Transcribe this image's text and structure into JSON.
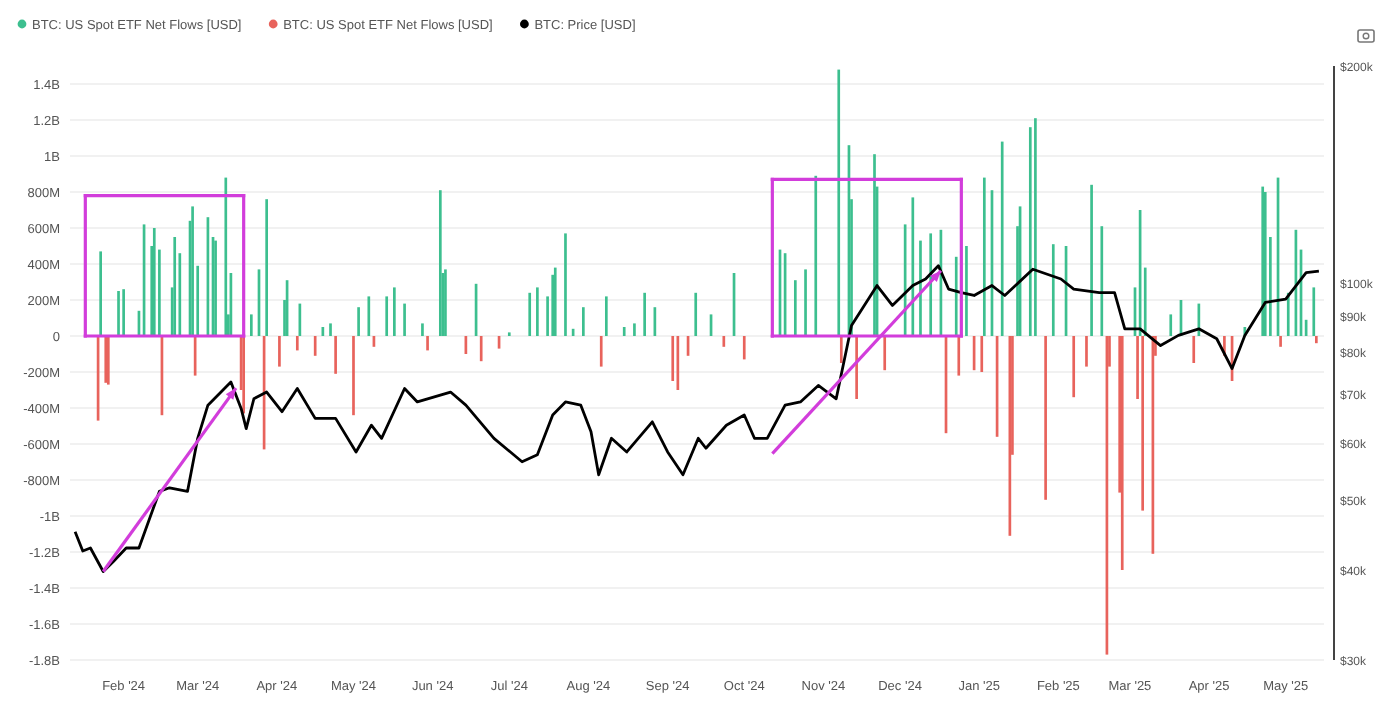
{
  "chart_data": {
    "type": "bar",
    "xlim": [
      "2024-01-11",
      "2025-05-16"
    ],
    "xticks": [
      {
        "value": "2024-02-01",
        "label": "Feb '24"
      },
      {
        "value": "2024-03-01",
        "label": "Mar '24"
      },
      {
        "value": "2024-04-01",
        "label": "Apr '24"
      },
      {
        "value": "2024-05-01",
        "label": "May '24"
      },
      {
        "value": "2024-06-01",
        "label": "Jun '24"
      },
      {
        "value": "2024-07-01",
        "label": "Jul '24"
      },
      {
        "value": "2024-08-01",
        "label": "Aug '24"
      },
      {
        "value": "2024-09-01",
        "label": "Sep '24"
      },
      {
        "value": "2024-10-01",
        "label": "Oct '24"
      },
      {
        "value": "2024-11-01",
        "label": "Nov '24"
      },
      {
        "value": "2024-12-01",
        "label": "Dec '24"
      },
      {
        "value": "2025-01-01",
        "label": "Jan '25"
      },
      {
        "value": "2025-02-01",
        "label": "Feb '25"
      },
      {
        "value": "2025-03-01",
        "label": "Mar '25"
      },
      {
        "value": "2025-04-01",
        "label": "Apr '25"
      },
      {
        "value": "2025-05-01",
        "label": "May '25"
      }
    ],
    "ylim": [
      -1800000000,
      1500000000
    ],
    "yticks": [
      {
        "value": 1400000000,
        "label": "1.4B"
      },
      {
        "value": 1200000000,
        "label": "1.2B"
      },
      {
        "value": 1000000000,
        "label": "1B"
      },
      {
        "value": 800000000,
        "label": "800M"
      },
      {
        "value": 600000000,
        "label": "600M"
      },
      {
        "value": 400000000,
        "label": "400M"
      },
      {
        "value": 200000000,
        "label": "200M"
      },
      0,
      {
        "value": -200000000,
        "label": "-200M"
      },
      {
        "value": -400000000,
        "label": "-400M"
      },
      {
        "value": -600000000,
        "label": "-600M"
      },
      {
        "value": -800000000,
        "label": "-800M"
      },
      {
        "value": -1000000000,
        "label": "-1B"
      },
      {
        "value": -1200000000,
        "label": "-1.2B"
      },
      {
        "value": -1400000000,
        "label": "-1.4B"
      },
      {
        "value": -1600000000,
        "label": "-1.6B"
      },
      {
        "value": -1800000000,
        "label": "-1.8B"
      }
    ],
    "y2lim": [
      30000,
      200000
    ],
    "y2ticks": [
      {
        "value": 200000,
        "label": "$200k"
      },
      {
        "value": 100000,
        "label": "$100k"
      },
      {
        "value": 90000,
        "label": "$90k"
      },
      {
        "value": 80000,
        "label": "$80k"
      },
      {
        "value": 70000,
        "label": "$70k"
      },
      {
        "value": 60000,
        "label": "$60k"
      },
      {
        "value": 50000,
        "label": "$50k"
      },
      {
        "value": 40000,
        "label": "$40k"
      },
      {
        "value": 30000,
        "label": "$30k"
      }
    ],
    "log": "y2",
    "grid": "y",
    "legend": "top left",
    "series": [
      {
        "name": "BTC: US Spot ETF Net Flows [USD]",
        "color": "#3dbf8f",
        "x": [
          "2024-01-23",
          "2024-01-30",
          "2024-02-01",
          "2024-02-07",
          "2024-02-09",
          "2024-02-12",
          "2024-02-13",
          "2024-02-15",
          "2024-02-20",
          "2024-02-21",
          "2024-02-23",
          "2024-02-27",
          "2024-02-28",
          "2024-03-01",
          "2024-03-05",
          "2024-03-07",
          "2024-03-08",
          "2024-03-12",
          "2024-03-13",
          "2024-03-14",
          "2024-03-22",
          "2024-03-25",
          "2024-03-28",
          "2024-04-04",
          "2024-04-05",
          "2024-04-10",
          "2024-04-19",
          "2024-04-22",
          "2024-05-03",
          "2024-05-07",
          "2024-05-14",
          "2024-05-17",
          "2024-05-21",
          "2024-05-28",
          "2024-06-04",
          "2024-06-05",
          "2024-06-06",
          "2024-06-18",
          "2024-07-01",
          "2024-07-09",
          "2024-07-12",
          "2024-07-16",
          "2024-07-18",
          "2024-07-19",
          "2024-07-23",
          "2024-07-26",
          "2024-07-30",
          "2024-08-08",
          "2024-08-15",
          "2024-08-19",
          "2024-08-23",
          "2024-08-27",
          "2024-09-12",
          "2024-09-18",
          "2024-09-27",
          "2024-10-15",
          "2024-10-17",
          "2024-10-21",
          "2024-10-25",
          "2024-10-29",
          "2024-11-07",
          "2024-11-11",
          "2024-11-12",
          "2024-11-21",
          "2024-11-22",
          "2024-12-03",
          "2024-12-06",
          "2024-12-09",
          "2024-12-13",
          "2024-12-17",
          "2024-12-23",
          "2024-12-27",
          "2025-01-03",
          "2025-01-06",
          "2025-01-10",
          "2025-01-16",
          "2025-01-17",
          "2025-01-21",
          "2025-01-23",
          "2025-01-30",
          "2025-02-04",
          "2025-02-14",
          "2025-02-18",
          "2025-03-03",
          "2025-03-05",
          "2025-03-07",
          "2025-03-17",
          "2025-03-21",
          "2025-03-28",
          "2025-04-15",
          "2025-04-22",
          "2025-04-23",
          "2025-04-25",
          "2025-04-28",
          "2025-05-02",
          "2025-05-05",
          "2025-05-07",
          "2025-05-09",
          "2025-05-12"
        ],
        "values": [
          470000000,
          250000000,
          260000000,
          140000000,
          620000000,
          500000000,
          600000000,
          480000000,
          270000000,
          550000000,
          460000000,
          640000000,
          720000000,
          390000000,
          660000000,
          550000000,
          530000000,
          880000000,
          120000000,
          350000000,
          120000000,
          370000000,
          760000000,
          200000000,
          310000000,
          180000000,
          50000000,
          70000000,
          160000000,
          220000000,
          220000000,
          270000000,
          180000000,
          70000000,
          810000000,
          350000000,
          370000000,
          290000000,
          20000000,
          240000000,
          270000000,
          220000000,
          340000000,
          380000000,
          570000000,
          40000000,
          160000000,
          220000000,
          50000000,
          70000000,
          240000000,
          160000000,
          240000000,
          120000000,
          350000000,
          480000000,
          460000000,
          310000000,
          370000000,
          890000000,
          1480000000,
          1060000000,
          760000000,
          1010000000,
          830000000,
          620000000,
          770000000,
          530000000,
          570000000,
          590000000,
          440000000,
          500000000,
          880000000,
          810000000,
          1080000000,
          610000000,
          720000000,
          1160000000,
          1210000000,
          510000000,
          500000000,
          840000000,
          610000000,
          270000000,
          700000000,
          380000000,
          120000000,
          200000000,
          180000000,
          50000000,
          830000000,
          800000000,
          550000000,
          880000000,
          240000000,
          590000000,
          480000000,
          90000000,
          270000000
        ]
      },
      {
        "name": "BTC: US Spot ETF Net Flows [USD]",
        "color": "#e8635c",
        "x": [
          "2024-01-22",
          "2024-01-25",
          "2024-01-26",
          "2024-02-16",
          "2024-02-29",
          "2024-03-18",
          "2024-03-19",
          "2024-03-27",
          "2024-04-02",
          "2024-04-09",
          "2024-04-16",
          "2024-04-24",
          "2024-05-01",
          "2024-05-09",
          "2024-05-30",
          "2024-06-14",
          "2024-06-20",
          "2024-06-27",
          "2024-08-06",
          "2024-09-03",
          "2024-09-05",
          "2024-09-09",
          "2024-09-23",
          "2024-10-01",
          "2024-11-08",
          "2024-11-14",
          "2024-11-25",
          "2024-12-19",
          "2024-12-24",
          "2024-12-30",
          "2025-01-02",
          "2025-01-08",
          "2025-01-13",
          "2025-01-14",
          "2025-01-27",
          "2025-02-07",
          "2025-02-12",
          "2025-02-20",
          "2025-02-21",
          "2025-02-25",
          "2025-02-26",
          "2025-03-04",
          "2025-03-06",
          "2025-03-10",
          "2025-03-11",
          "2025-03-26",
          "2025-04-07",
          "2025-04-10",
          "2025-04-29",
          "2025-05-13"
        ],
        "values": [
          -470000000,
          -260000000,
          -270000000,
          -440000000,
          -220000000,
          -300000000,
          -430000000,
          -630000000,
          -170000000,
          -80000000,
          -110000000,
          -210000000,
          -440000000,
          -60000000,
          -80000000,
          -100000000,
          -140000000,
          -70000000,
          -170000000,
          -250000000,
          -300000000,
          -110000000,
          -60000000,
          -130000000,
          -150000000,
          -350000000,
          -190000000,
          -540000000,
          -220000000,
          -190000000,
          -200000000,
          -560000000,
          -1110000000,
          -660000000,
          -910000000,
          -340000000,
          -170000000,
          -1770000000,
          -170000000,
          -870000000,
          -1300000000,
          -350000000,
          -970000000,
          -1210000000,
          -110000000,
          -150000000,
          -110000000,
          -250000000,
          -60000000,
          -40000000
        ]
      },
      {
        "name": "BTC: Price [USD]",
        "type": "line",
        "axis": "y2",
        "color": "#000000",
        "x": [
          "2024-01-13",
          "2024-01-16",
          "2024-01-19",
          "2024-01-24",
          "2024-01-28",
          "2024-02-02",
          "2024-02-07",
          "2024-02-15",
          "2024-02-19",
          "2024-02-26",
          "2024-03-01",
          "2024-03-05",
          "2024-03-14",
          "2024-03-18",
          "2024-03-20",
          "2024-03-23",
          "2024-03-28",
          "2024-04-03",
          "2024-04-09",
          "2024-04-16",
          "2024-04-24",
          "2024-05-02",
          "2024-05-08",
          "2024-05-12",
          "2024-05-21",
          "2024-05-26",
          "2024-06-08",
          "2024-06-14",
          "2024-06-25",
          "2024-07-06",
          "2024-07-12",
          "2024-07-18",
          "2024-07-23",
          "2024-07-29",
          "2024-08-02",
          "2024-08-05",
          "2024-08-10",
          "2024-08-16",
          "2024-08-26",
          "2024-09-01",
          "2024-09-07",
          "2024-09-13",
          "2024-09-16",
          "2024-09-24",
          "2024-10-01",
          "2024-10-05",
          "2024-10-10",
          "2024-10-17",
          "2024-10-23",
          "2024-10-30",
          "2024-11-06",
          "2024-11-12",
          "2024-11-22",
          "2024-11-28",
          "2024-12-06",
          "2024-12-11",
          "2024-12-16",
          "2024-12-20",
          "2024-12-25",
          "2024-12-30",
          "2025-01-06",
          "2025-01-11",
          "2025-01-22",
          "2025-02-02",
          "2025-02-07",
          "2025-02-17",
          "2025-02-23",
          "2025-02-27",
          "2025-03-05",
          "2025-03-13",
          "2025-03-20",
          "2025-03-28",
          "2025-04-04",
          "2025-04-10",
          "2025-04-15",
          "2025-04-23",
          "2025-05-01",
          "2025-05-09",
          "2025-05-14"
        ],
        "values": [
          45200,
          42500,
          42900,
          39800,
          41100,
          42900,
          42900,
          51400,
          52000,
          51400,
          60900,
          67700,
          72900,
          67000,
          62800,
          69100,
          70600,
          66300,
          71400,
          64900,
          64900,
          58300,
          63500,
          60900,
          71400,
          68400,
          70600,
          67700,
          60900,
          56500,
          57800,
          65600,
          68400,
          67700,
          62200,
          54200,
          60900,
          58300,
          64200,
          58300,
          54200,
          60900,
          59000,
          63500,
          65600,
          60900,
          60900,
          67700,
          68400,
          72100,
          69100,
          87300,
          99200,
          93100,
          99200,
          101300,
          105700,
          98100,
          97000,
          96100,
          99200,
          96100,
          104500,
          101300,
          98100,
          97000,
          97000,
          86400,
          86400,
          81900,
          84600,
          86400,
          83700,
          76100,
          84600,
          94000,
          95000,
          103400,
          103900
        ]
      }
    ]
  }
}
